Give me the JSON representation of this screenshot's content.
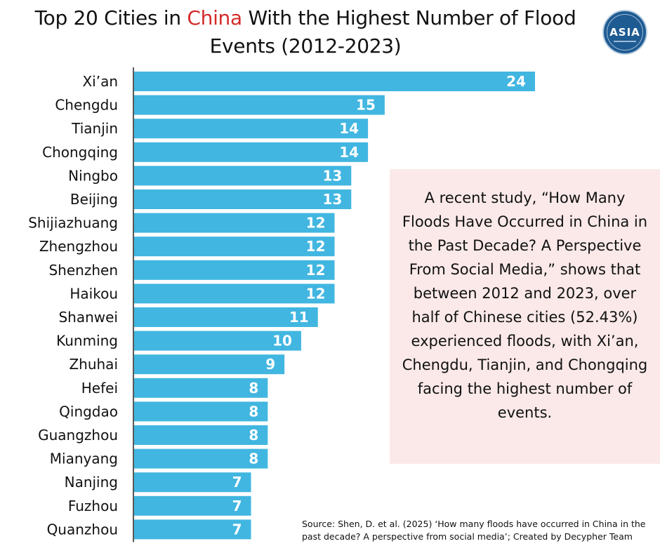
{
  "title": {
    "part1": "Top 20 Cities in ",
    "highlight": "China",
    "part2": " With the Highest Number of Flood Events (2012-2023)"
  },
  "logo": {
    "text": "ASIA"
  },
  "callout": {
    "text": "A recent study, “How Many Floods Have Occurred in China in the Past Decade? A Perspective From Social Media,” shows that between 2012 and 2023, over half of Chinese cities (52.43%) experienced floods, with Xi’an, Chengdu, Tianjin, and Chongqing facing the highest number of events."
  },
  "source": "Source: Shen, D. et al. (2025) ‘How many floods have occurred in China in the past decade? A perspective from social media’; Created by Decypher Team",
  "colors": {
    "bar": "#41b6e0",
    "highlight": "#d42a2a",
    "callout_bg": "#fbe9e9",
    "axis": "#222222"
  },
  "chart_data": {
    "type": "bar",
    "orientation": "horizontal",
    "categories": [
      "Xi’an",
      "Chengdu",
      "Tianjin",
      "Chongqing",
      "Ningbo",
      "Beijing",
      "Shijiazhuang",
      "Zhengzhou",
      "Shenzhen",
      "Haikou",
      "Shanwei",
      "Kunming",
      "Zhuhai",
      "Hefei",
      "Qingdao",
      "Guangzhou",
      "Mianyang",
      "Nanjing",
      "Fuzhou",
      "Quanzhou"
    ],
    "values": [
      24,
      15,
      14,
      14,
      13,
      13,
      12,
      12,
      12,
      12,
      11,
      10,
      9,
      8,
      8,
      8,
      8,
      7,
      7,
      7
    ],
    "xlim": [
      0,
      24
    ],
    "data_labels": true,
    "grid": false,
    "legend": "none"
  }
}
